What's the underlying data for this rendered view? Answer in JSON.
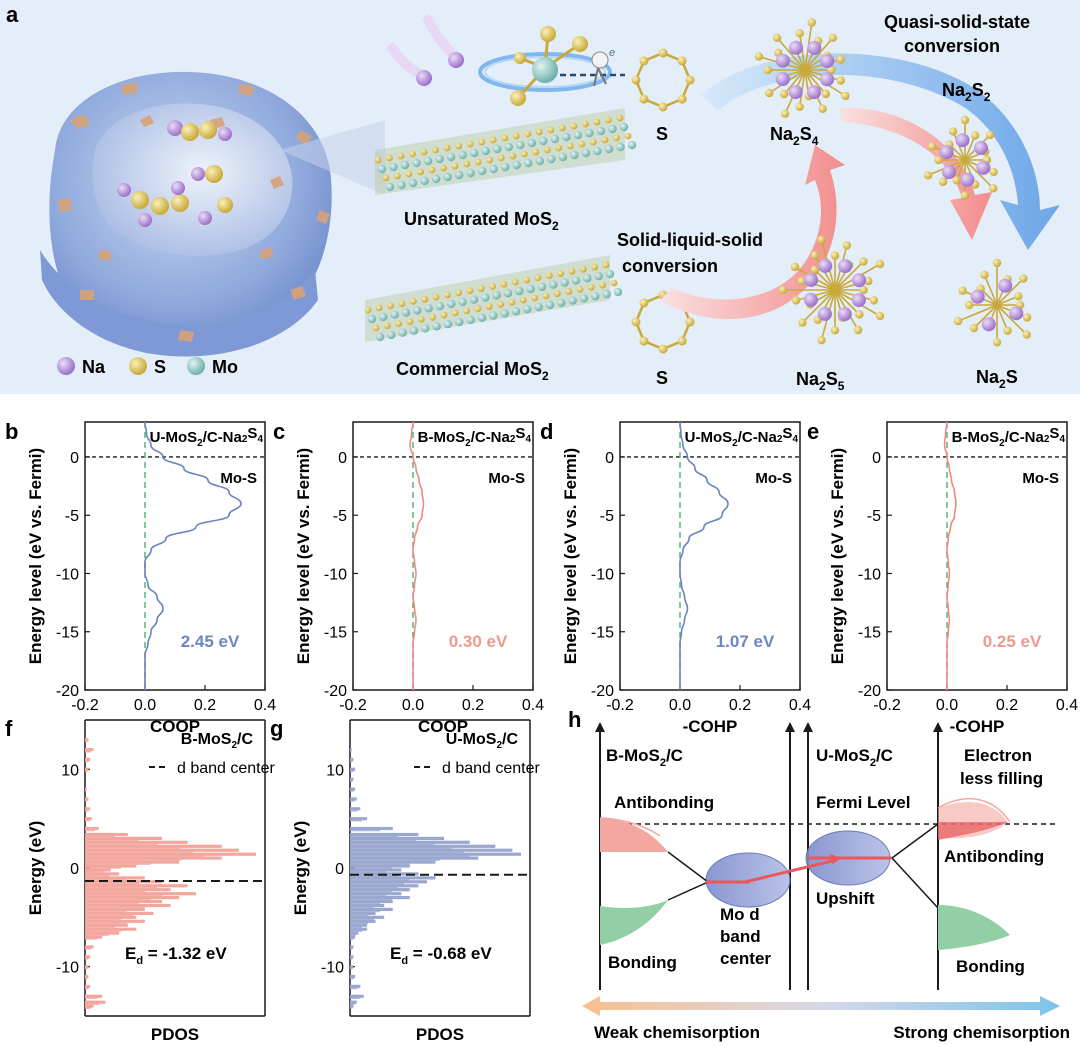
{
  "panel_a": {
    "letter": "a",
    "unsaturated_label": "Unsaturated MoS",
    "commercial_label": "Commercial MoS",
    "sub2": "2",
    "sub4": "4",
    "sub5": "5",
    "s_label": "S",
    "na2s4_pre": "Na",
    "na2s4_mid": "S",
    "na2s_label_pre": "Na",
    "na2s_label_mid": "S",
    "quasi_line1": "Quasi-solid-state",
    "quasi_line2": "conversion",
    "solid_line1": "Solid-liquid-solid",
    "solid_line2": "conversion",
    "electron_label": "e",
    "legend": [
      {
        "label": "Na",
        "color": "#b48fd6"
      },
      {
        "label": "S",
        "color": "#e2c95c"
      },
      {
        "label": "Mo",
        "color": "#8ec9c4"
      }
    ],
    "colors": {
      "bg": "#e4eef9",
      "shell": "#8ea8dc",
      "flake": "#d9a277",
      "blue_arrow": "#6aa8e8",
      "pink_arrow": "#f4a0a0"
    }
  },
  "charts": [
    {
      "letter": "b",
      "title_pre": "U-MoS",
      "title_mid": "/C-Na",
      "title_sub1": "2",
      "title_sub2": "4",
      "bond": "Mo-S",
      "value": "2.45 eV",
      "value_color": "#6c86c4",
      "xlabel": "COOP",
      "line_color": "#6a83c0"
    },
    {
      "letter": "c",
      "title_pre": "B-MoS",
      "title_mid": "/C-Na",
      "title_sub1": "2",
      "title_sub2": "4",
      "bond": "Mo-S",
      "value": "0.30 eV",
      "value_color": "#ee9a8c",
      "xlabel": "COOP",
      "line_color": "#ee8a80"
    },
    {
      "letter": "d",
      "title_pre": "U-MoS",
      "title_mid": "/C-Na",
      "title_sub1": "2",
      "title_sub2": "4",
      "bond": "Mo-S",
      "value": "1.07 eV",
      "value_color": "#6c86c4",
      "xlabel": "-COHP",
      "line_color": "#6a83c0"
    },
    {
      "letter": "e",
      "title_pre": "B-MoS",
      "title_mid": "/C-Na",
      "title_sub1": "2",
      "title_sub2": "4",
      "bond": "Mo-S",
      "value": "0.25 eV",
      "value_color": "#ee9a8c",
      "xlabel": "-COHP",
      "line_color": "#ee8a80"
    }
  ],
  "chart_data": [
    {
      "type": "line",
      "panel": "b",
      "title": "U-MoS2/C-Na2S4",
      "xlabel": "COOP",
      "ylabel": "Energy level (eV vs. Fermi)",
      "xlim": [
        -0.2,
        0.4
      ],
      "ylim": [
        -20,
        3
      ],
      "xticks": [
        "-0.2",
        "0.0",
        "0.2",
        "0.4"
      ],
      "yticks": [
        "0",
        "-5",
        "-10",
        "-15",
        "-20"
      ],
      "series": [
        {
          "name": "Mo-S",
          "energy": [
            3,
            2,
            1,
            0,
            -1,
            -2,
            -3,
            -4,
            -5,
            -6,
            -7,
            -8,
            -9,
            -10,
            -11,
            -12,
            -13,
            -14,
            -15,
            -16,
            -17,
            -18,
            -20
          ],
          "values": [
            0.0,
            0.005,
            0.02,
            0.06,
            0.13,
            0.21,
            0.28,
            0.32,
            0.28,
            0.17,
            0.07,
            0.02,
            0.0,
            0.0,
            0.01,
            0.04,
            0.06,
            0.04,
            0.02,
            0.01,
            0.0,
            0.0,
            0.0
          ]
        }
      ],
      "annotation": "2.45 eV"
    },
    {
      "type": "line",
      "panel": "c",
      "title": "B-MoS2/C-Na2S4",
      "xlabel": "COOP",
      "ylabel": "Energy level (eV vs. Fermi)",
      "xlim": [
        -0.2,
        0.4
      ],
      "ylim": [
        -20,
        3
      ],
      "xticks": [
        "-0.2",
        "0.0",
        "0.2",
        "0.4"
      ],
      "yticks": [
        "0",
        "-5",
        "-10",
        "-15",
        "-20"
      ],
      "series": [
        {
          "name": "Mo-S",
          "energy": [
            3,
            2,
            1,
            0,
            -1,
            -2,
            -3,
            -4,
            -5,
            -6,
            -7,
            -8,
            -9,
            -10,
            -11,
            -12,
            -13,
            -14,
            -15,
            -16,
            -17,
            -18,
            -20
          ],
          "values": [
            0.0,
            -0.005,
            -0.01,
            0.0,
            0.01,
            0.02,
            0.03,
            0.035,
            0.03,
            0.015,
            0.005,
            0.0,
            0.005,
            0.01,
            0.005,
            0.0,
            0.005,
            0.01,
            0.005,
            0.0,
            0.0,
            0.0,
            0.0
          ]
        }
      ],
      "annotation": "0.30 eV"
    },
    {
      "type": "line",
      "panel": "d",
      "title": "U-MoS2/C-Na2S4",
      "xlabel": "-COHP",
      "ylabel": "Energy level (eV vs. Fermi)",
      "xlim": [
        -0.2,
        0.4
      ],
      "ylim": [
        -20,
        3
      ],
      "xticks": [
        "-0.2",
        "0.0",
        "0.2",
        "0.4"
      ],
      "yticks": [
        "0",
        "-5",
        "-10",
        "-15",
        "-20"
      ],
      "series": [
        {
          "name": "Mo-S",
          "energy": [
            3,
            2,
            1,
            0,
            -1,
            -2,
            -3,
            -4,
            -5,
            -6,
            -7,
            -8,
            -9,
            -10,
            -11,
            -12,
            -13,
            -14,
            -15,
            -16,
            -17,
            -18,
            -20
          ],
          "values": [
            0.0,
            0.003,
            0.01,
            0.025,
            0.05,
            0.09,
            0.13,
            0.16,
            0.14,
            0.08,
            0.03,
            0.01,
            0.0,
            0.0,
            0.005,
            0.015,
            0.025,
            0.015,
            0.005,
            0.0,
            0.0,
            0.0,
            0.0
          ]
        }
      ],
      "annotation": "1.07 eV"
    },
    {
      "type": "line",
      "panel": "e",
      "title": "B-MoS2/C-Na2S4",
      "xlabel": "-COHP",
      "ylabel": "Energy level (eV vs. Fermi)",
      "xlim": [
        -0.2,
        0.4
      ],
      "ylim": [
        -20,
        3
      ],
      "xticks": [
        "-0.2",
        "0.0",
        "0.2",
        "0.4"
      ],
      "yticks": [
        "0",
        "-5",
        "-10",
        "-15",
        "-20"
      ],
      "series": [
        {
          "name": "Mo-S",
          "energy": [
            3,
            2,
            1,
            0,
            -1,
            -2,
            -3,
            -4,
            -5,
            -6,
            -7,
            -8,
            -9,
            -10,
            -11,
            -12,
            -13,
            -14,
            -15,
            -16,
            -17,
            -18,
            -20
          ],
          "values": [
            0.0,
            -0.005,
            -0.008,
            0.0,
            0.008,
            0.015,
            0.025,
            0.03,
            0.025,
            0.012,
            0.004,
            0.0,
            0.004,
            0.008,
            0.004,
            0.0,
            0.004,
            0.008,
            0.004,
            0.0,
            0.0,
            0.0,
            0.0
          ]
        }
      ],
      "annotation": "0.25 eV"
    },
    {
      "type": "bar",
      "panel": "f",
      "orientation": "horizontal",
      "title": "B-MoS2/C",
      "xlabel": "PDOS",
      "ylabel": "Energy (eV)",
      "ylim": [
        -15,
        15
      ],
      "yticks": [
        "10",
        "0",
        "-10"
      ],
      "legend": "d band center",
      "d_band_center": -1.32,
      "energy": [
        14,
        13,
        12,
        11,
        10,
        9,
        8,
        7,
        6,
        5,
        4,
        3.4,
        3,
        2.6,
        2.2,
        1.8,
        1.4,
        1,
        0.6,
        0.2,
        -0.2,
        -0.6,
        -1,
        -1.4,
        -1.8,
        -2.2,
        -2.6,
        -3,
        -3.4,
        -3.8,
        -4.2,
        -4.6,
        -5,
        -5.4,
        -5.8,
        -6.2,
        -6.6,
        -7,
        -8,
        -9,
        -10,
        -11,
        -12,
        -13,
        -13.6,
        -14
      ],
      "values": [
        0.0,
        0.02,
        0.05,
        0.03,
        0.02,
        0.0,
        0.01,
        0.02,
        0.03,
        0.04,
        0.08,
        0.25,
        0.45,
        0.6,
        0.8,
        0.9,
        1.0,
        0.8,
        0.55,
        0.3,
        0.15,
        0.2,
        0.35,
        0.45,
        0.6,
        0.5,
        0.65,
        0.55,
        0.45,
        0.5,
        0.35,
        0.4,
        0.3,
        0.35,
        0.25,
        0.3,
        0.2,
        0.1,
        0.05,
        0.03,
        0.02,
        0.02,
        0.03,
        0.1,
        0.12,
        0.05
      ],
      "annotation": "E_d = -1.32 eV"
    },
    {
      "type": "bar",
      "panel": "g",
      "orientation": "horizontal",
      "title": "U-MoS2/C",
      "xlabel": "PDOS",
      "ylabel": "Energy (eV)",
      "ylim": [
        -15,
        15
      ],
      "yticks": [
        "10",
        "0",
        "-10"
      ],
      "legend": "d band center",
      "d_band_center": -0.68,
      "energy": [
        14,
        13,
        12,
        11,
        10,
        9,
        8,
        7,
        6,
        5,
        4,
        3.4,
        3,
        2.6,
        2.2,
        1.8,
        1.4,
        1,
        0.6,
        0.2,
        -0.2,
        -0.6,
        -1,
        -1.4,
        -1.8,
        -2.2,
        -2.6,
        -3,
        -3.4,
        -3.8,
        -4.2,
        -4.6,
        -5,
        -5.4,
        -5.8,
        -6.2,
        -6.6,
        -7,
        -8,
        -9,
        -10,
        -11,
        -12,
        -13,
        -13.6,
        -14
      ],
      "values": [
        0.0,
        0.0,
        0.01,
        0.02,
        0.03,
        0.02,
        0.03,
        0.04,
        0.06,
        0.1,
        0.25,
        0.4,
        0.55,
        0.7,
        0.85,
        0.95,
        1.0,
        0.75,
        0.5,
        0.35,
        0.3,
        0.4,
        0.5,
        0.45,
        0.4,
        0.35,
        0.3,
        0.35,
        0.25,
        0.2,
        0.25,
        0.15,
        0.2,
        0.15,
        0.1,
        0.1,
        0.05,
        0.03,
        0.02,
        0.02,
        0.02,
        0.03,
        0.06,
        0.08,
        0.04,
        0.02
      ],
      "annotation": "E_d = -0.68 eV"
    }
  ],
  "panel_f": {
    "letter": "f",
    "title_pre": "B-MoS",
    "title_sub": "2",
    "title_post": "/C",
    "legend": "d band center",
    "ed_pre": "E",
    "ed_sub": "d",
    "ed_post": " = -1.32 eV",
    "xlabel": "PDOS",
    "ylabel": "Energy (eV)",
    "bar_color": "#f2a79e"
  },
  "panel_g": {
    "letter": "g",
    "title_pre": "U-MoS",
    "title_sub": "2",
    "title_post": "/C",
    "legend": "d band center",
    "ed_pre": "E",
    "ed_sub": "d",
    "ed_post": " = -0.68 eV",
    "xlabel": "PDOS",
    "ylabel": "Energy (eV)",
    "bar_color": "#9aa8cf"
  },
  "shared_ylabel": "Energy level (eV vs. Fermi)",
  "xticks": [
    "-0.2",
    "0.0",
    "0.2",
    "0.4"
  ],
  "yticks": [
    "0",
    "-5",
    "-10",
    "-15",
    "-20"
  ],
  "pdos_yticks": [
    "10",
    "0",
    "-10"
  ],
  "panel_h": {
    "letter": "h",
    "left_title_pre": "B-MoS",
    "right_title_pre": "U-MoS",
    "sub2": "2",
    "title_post": "/C",
    "antibonding_left": "Antibonding",
    "bonding_left": "Bonding",
    "fermi_level": "Fermi Level",
    "mo_d_line1": "Mo d",
    "mo_d_line2": "band",
    "mo_d_line3": "center",
    "upshift": "Upshift",
    "electron_line1": "Electron",
    "electron_line2": "less filling",
    "antibonding_right": "Antibonding",
    "bonding_right": "Bonding",
    "weak": "Weak chemisorption",
    "strong": "Strong chemisorption",
    "colors": {
      "antibonding": "#f3a7a0",
      "bonding": "#92cfa6",
      "center_band": "#8f99d0",
      "arrow_red": "#e8585c",
      "grad_left": "#f7c08e",
      "grad_right": "#7dc3ea"
    }
  }
}
